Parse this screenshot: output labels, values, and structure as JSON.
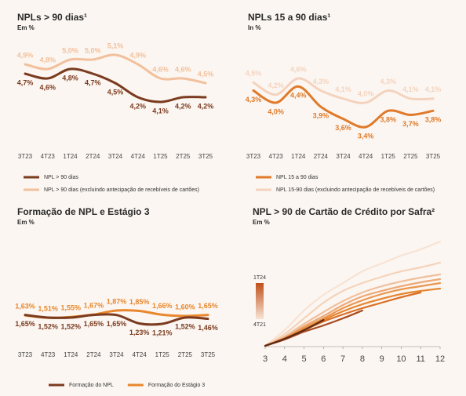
{
  "chart_data": [
    {
      "type": "line",
      "title": "NPLs > 90 dias¹",
      "subtitle": "Em %",
      "categories": [
        "3T23",
        "4T23",
        "1T24",
        "2T24",
        "3T24",
        "4T24",
        "1T25",
        "2T25",
        "3T25"
      ],
      "series": [
        {
          "name": "NPL > 90 dias",
          "color": "#7b3b1f",
          "values": [
            4.7,
            4.6,
            4.8,
            4.7,
            4.5,
            4.2,
            4.1,
            4.2,
            4.2
          ],
          "value_labels": [
            "4,7%",
            "4,6%",
            "4,8%",
            "4,7%",
            "4,5%",
            "4,2%",
            "4,1%",
            "4,2%",
            "4,2%"
          ]
        },
        {
          "name": "NPL > 90 dias (excluindo antecipação de recebíveis de cartões)",
          "color": "#f2c09c",
          "values": [
            4.9,
            4.8,
            5.0,
            5.0,
            5.1,
            4.9,
            4.6,
            4.6,
            4.5
          ],
          "value_labels": [
            "4,9%",
            "4,8%",
            "5,0%",
            "5,0%",
            "5,1%",
            "4,9%",
            "4,6%",
            "4,6%",
            "4,5%"
          ]
        }
      ]
    },
    {
      "type": "line",
      "title": "NPLs 15 a 90 dias¹",
      "subtitle": "In %",
      "categories": [
        "3T23",
        "4T23",
        "1T24",
        "2T24",
        "3T24",
        "4T24",
        "1T25",
        "2T25",
        "3T25"
      ],
      "series": [
        {
          "name": "NPL 15 a 90 dias",
          "color": "#e07a2a",
          "values": [
            4.3,
            4.0,
            4.4,
            3.9,
            3.6,
            3.4,
            3.8,
            3.7,
            3.8
          ],
          "value_labels": [
            "4,3%",
            "4,0%",
            "4,4%",
            "3,9%",
            "3,6%",
            "3,4%",
            "3,8%",
            "3,7%",
            "3,8%"
          ]
        },
        {
          "name": "NPL 15-90 dias (excluindo antecipação de recebíveis de cartões)",
          "color": "#f4d3be",
          "values": [
            4.5,
            4.2,
            4.6,
            4.3,
            4.1,
            4.0,
            4.3,
            4.1,
            4.1
          ],
          "value_labels": [
            "4,5%",
            "4,2%",
            "4,6%",
            "4,3%",
            "4,1%",
            "4,0%",
            "4,3%",
            "4,1%",
            "4,1%"
          ]
        }
      ]
    },
    {
      "type": "line",
      "title": "Formação de NPL e Estágio 3",
      "subtitle": "Em %",
      "categories": [
        "3T23",
        "4T23",
        "1T24",
        "2T24",
        "3T24",
        "4T24",
        "1T25",
        "2T25",
        "3T25"
      ],
      "series": [
        {
          "name": "Formação do NPL",
          "color": "#7b3b1f",
          "values": [
            1.65,
            1.52,
            1.52,
            1.65,
            1.65,
            1.23,
            1.21,
            1.52,
            1.46
          ],
          "value_labels": [
            "1,65%",
            "1,52%",
            "1,52%",
            "1,65%",
            "1,65%",
            "1,23%",
            "1,21%",
            "1,52%",
            "1,46%"
          ]
        },
        {
          "name": "Formação do Estágio 3",
          "color": "#e8872e",
          "values": [
            1.63,
            1.51,
            1.55,
            1.67,
            1.87,
            1.85,
            1.66,
            1.6,
            1.65
          ],
          "value_labels": [
            "1,63%",
            "1,51%",
            "1,55%",
            "1,67%",
            "1,87%",
            "1,85%",
            "1,66%",
            "1,60%",
            "1,65%"
          ]
        }
      ]
    },
    {
      "type": "cohort",
      "title": "NPL > 90 de Cartão de Crédito por Safra²",
      "subtitle": "Em %",
      "color_scale": {
        "top": "1T24",
        "bottom": "4T21"
      },
      "x": [
        3,
        4,
        5,
        6,
        7,
        8,
        9,
        10,
        11,
        12
      ],
      "xlim": [
        3,
        12
      ],
      "xticks": [
        3,
        4,
        5,
        6,
        7,
        8,
        9,
        10,
        11,
        12
      ],
      "series": [
        {
          "color": "#f8e3d4",
          "values": [
            0,
            2.0,
            4.5,
            6.5,
            8.0,
            9.5,
            10.5,
            11.5,
            12.3,
            13.3
          ]
        },
        {
          "color": "#f5d3ba",
          "values": [
            0,
            1.5,
            3.5,
            5.5,
            7.0,
            8.0,
            8.8,
            9.5,
            10.0,
            10.6
          ]
        },
        {
          "color": "#f0bf9c",
          "values": [
            0,
            1.2,
            2.8,
            4.3,
            5.7,
            6.8,
            7.6,
            8.2,
            8.7,
            9.1
          ]
        },
        {
          "color": "#eda978",
          "values": [
            0,
            1.0,
            2.5,
            3.8,
            5.2,
            6.3,
            7.0,
            7.6,
            8.1,
            8.5
          ]
        },
        {
          "color": "#e9964f",
          "values": [
            0,
            1.0,
            2.3,
            3.5,
            4.8,
            5.8,
            6.6,
            7.2,
            7.6,
            8.0
          ]
        },
        {
          "color": "#e6852f",
          "values": [
            0,
            0.9,
            2.1,
            3.3,
            4.4,
            5.3,
            6.0,
            6.6,
            7.0,
            7.3
          ]
        },
        {
          "color": "#d96f25",
          "values": [
            0,
            0.9,
            2.0,
            3.1,
            4.0,
            4.8,
            5.5,
            6.2,
            6.8,
            null
          ]
        },
        {
          "color": "#a84a1f",
          "values": [
            0,
            0.8,
            1.8,
            2.6,
            3.5,
            4.5,
            null,
            null,
            null,
            null
          ]
        },
        {
          "color": "#5e2a15",
          "values": [
            0,
            0.9,
            2.0,
            3.3,
            null,
            null,
            null,
            null,
            null,
            null
          ]
        }
      ]
    }
  ]
}
